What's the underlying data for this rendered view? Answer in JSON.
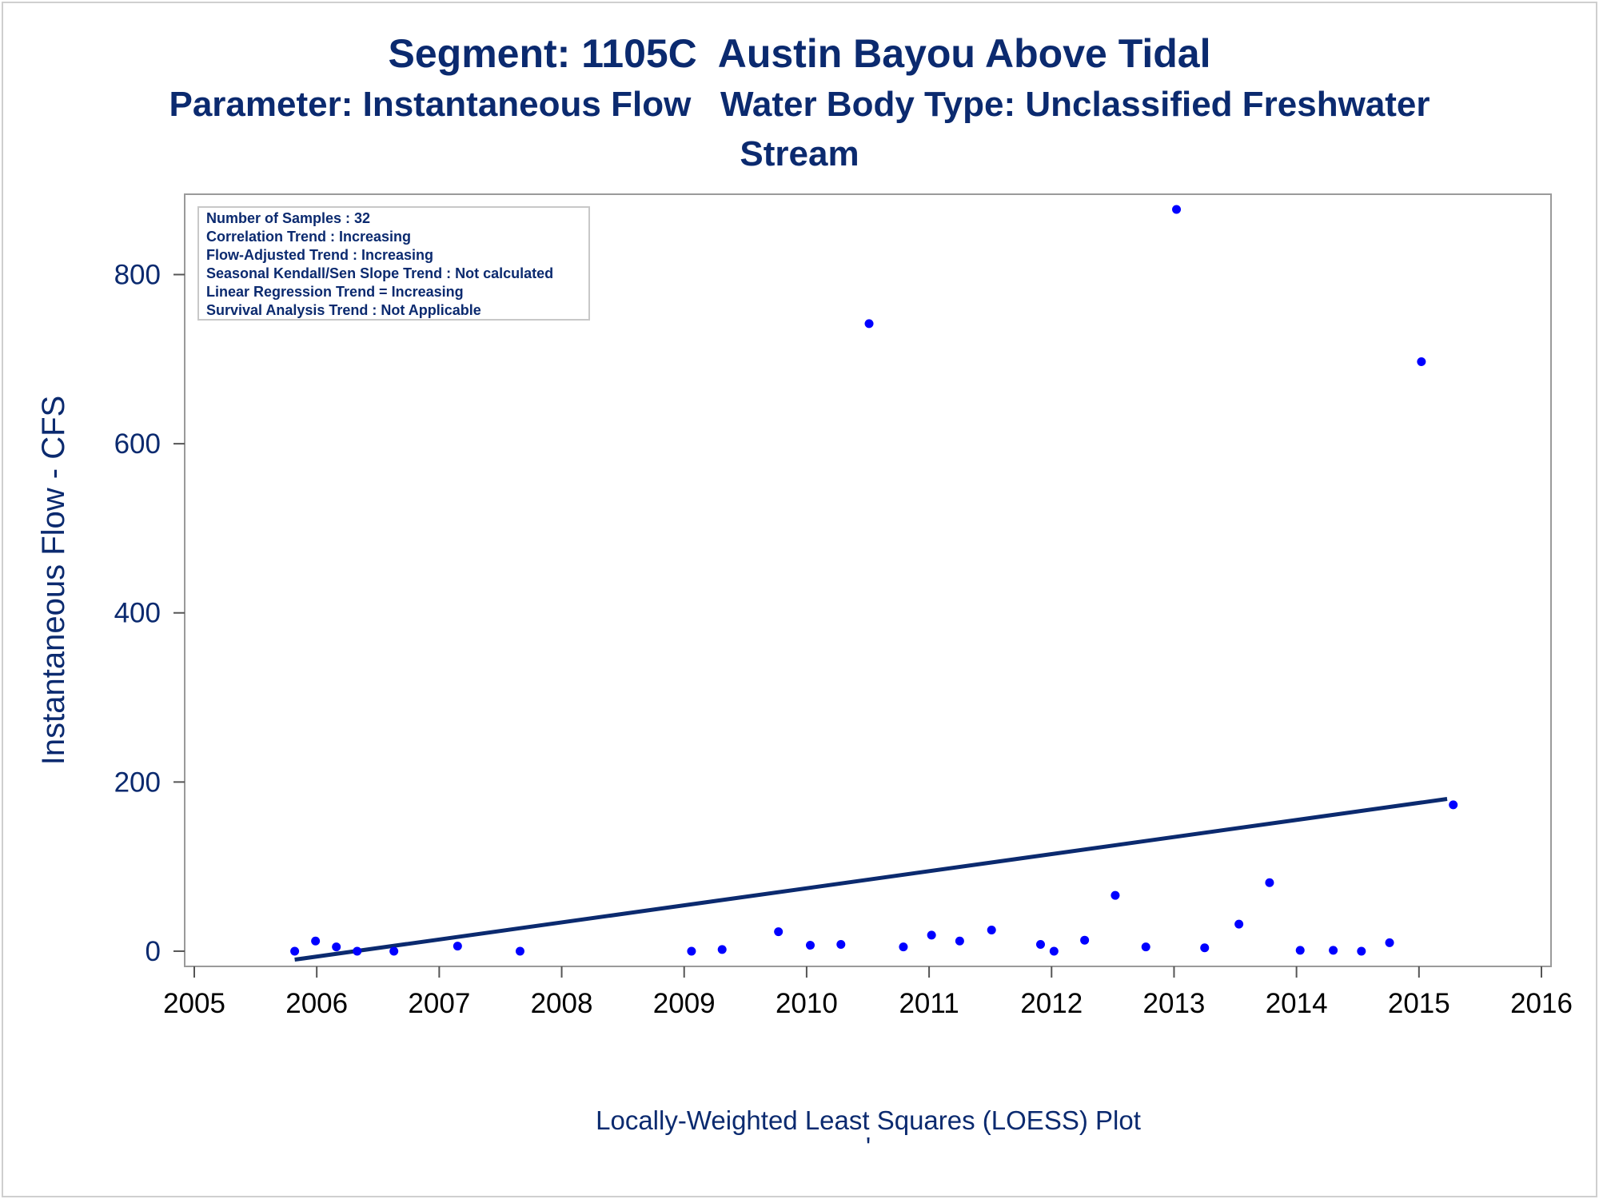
{
  "titles": {
    "line1": "Segment: 1105C  Austin Bayou Above Tidal",
    "line2": "Parameter: Instantaneous Flow   Water Body Type: Unclassified Freshwater",
    "line3": "Stream"
  },
  "stats_box": [
    "Number of Samples : 32",
    "Correlation Trend : Increasing",
    "Flow-Adjusted Trend : Increasing",
    "Seasonal Kendall/Sen Slope Trend : Not calculated",
    "Linear Regression Trend = Increasing",
    "Survival Analysis Trend : Not Applicable"
  ],
  "footnote": "Locally-Weighted Least Squares (LOESS) Plot",
  "footnote2": "'",
  "colors": {
    "text": "#0b2a6f",
    "points": "#0000ff",
    "line": "#0b2a6f",
    "frame": "#9a9a9a"
  },
  "chart_data": {
    "type": "scatter",
    "xlabel": "",
    "ylabel": "Instantaneous Flow - CFS",
    "xlim": [
      2005,
      2016
    ],
    "ylim": [
      -18,
      895
    ],
    "xticks": [
      2005,
      2006,
      2007,
      2008,
      2009,
      2010,
      2011,
      2012,
      2013,
      2014,
      2015,
      2016
    ],
    "yticks": [
      0,
      200,
      400,
      600,
      800
    ],
    "grid": false,
    "points": [
      {
        "x": 2005.82,
        "y": 0
      },
      {
        "x": 2005.99,
        "y": 12
      },
      {
        "x": 2006.16,
        "y": 5
      },
      {
        "x": 2006.33,
        "y": 0
      },
      {
        "x": 2006.63,
        "y": 0
      },
      {
        "x": 2007.15,
        "y": 6
      },
      {
        "x": 2007.66,
        "y": 0
      },
      {
        "x": 2009.06,
        "y": 0
      },
      {
        "x": 2009.31,
        "y": 2
      },
      {
        "x": 2009.77,
        "y": 23
      },
      {
        "x": 2010.03,
        "y": 7
      },
      {
        "x": 2010.28,
        "y": 8
      },
      {
        "x": 2010.51,
        "y": 742
      },
      {
        "x": 2010.79,
        "y": 5
      },
      {
        "x": 2011.02,
        "y": 19
      },
      {
        "x": 2011.25,
        "y": 12
      },
      {
        "x": 2011.51,
        "y": 25
      },
      {
        "x": 2011.91,
        "y": 8
      },
      {
        "x": 2012.02,
        "y": 0
      },
      {
        "x": 2012.27,
        "y": 13
      },
      {
        "x": 2012.52,
        "y": 66
      },
      {
        "x": 2012.77,
        "y": 5
      },
      {
        "x": 2013.02,
        "y": 877
      },
      {
        "x": 2013.25,
        "y": 4
      },
      {
        "x": 2013.53,
        "y": 32
      },
      {
        "x": 2013.78,
        "y": 81
      },
      {
        "x": 2014.03,
        "y": 1
      },
      {
        "x": 2014.3,
        "y": 1
      },
      {
        "x": 2014.53,
        "y": 0
      },
      {
        "x": 2014.76,
        "y": 10
      },
      {
        "x": 2015.02,
        "y": 697
      },
      {
        "x": 2015.28,
        "y": 173
      }
    ],
    "trend_line": {
      "x": [
        2005.82,
        2015.23
      ],
      "y": [
        -10,
        180
      ]
    }
  }
}
